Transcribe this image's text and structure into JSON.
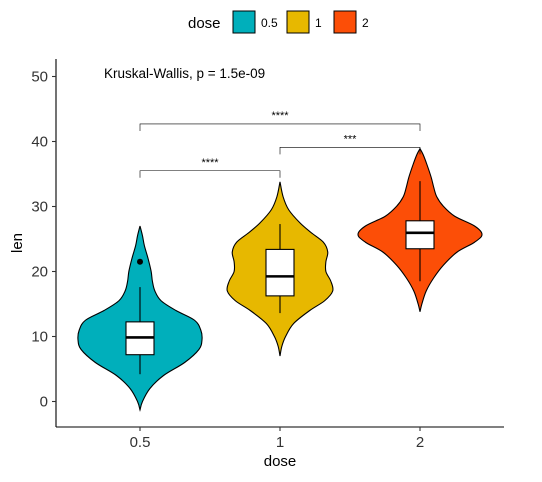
{
  "chart_data": {
    "type": "violin",
    "xlabel": "dose",
    "ylabel": "len",
    "ylim": [
      -4,
      52.5
    ],
    "yticks": [
      0,
      10,
      20,
      30,
      40,
      50
    ],
    "categories": [
      "0.5",
      "1",
      "2"
    ],
    "colors": [
      "#00AFBB",
      "#E7B800",
      "#FC4E07"
    ],
    "legend": {
      "title": "dose",
      "position": "top",
      "entries": [
        "0.5",
        "1",
        "2"
      ]
    },
    "groups": [
      {
        "name": "0.5",
        "box": {
          "min": 4.2,
          "q1": 7.2,
          "median": 9.85,
          "q3": 12.25,
          "max": 17.6
        },
        "outliers": [
          21.5
        ],
        "violin_range": [
          -1.3,
          27.0
        ]
      },
      {
        "name": "1",
        "box": {
          "min": 13.6,
          "q1": 16.25,
          "median": 19.25,
          "q3": 23.4,
          "max": 27.3
        },
        "outliers": [],
        "violin_range": [
          7.0,
          33.8
        ]
      },
      {
        "name": "2",
        "box": {
          "min": 18.5,
          "q1": 23.5,
          "median": 25.95,
          "q3": 27.8,
          "max": 33.9
        },
        "outliers": [],
        "violin_range": [
          13.8,
          38.9
        ]
      }
    ],
    "annotations": {
      "global_test": "Kruskal-Wallis, p = 1.5e-09",
      "comparisons": [
        {
          "group1": "0.5",
          "group2": "1",
          "label": "****",
          "y": 35.5
        },
        {
          "group1": "1",
          "group2": "2",
          "label": "***",
          "y": 39.1
        },
        {
          "group1": "0.5",
          "group2": "2",
          "label": "****",
          "y": 42.7
        }
      ]
    },
    "grid": false
  }
}
